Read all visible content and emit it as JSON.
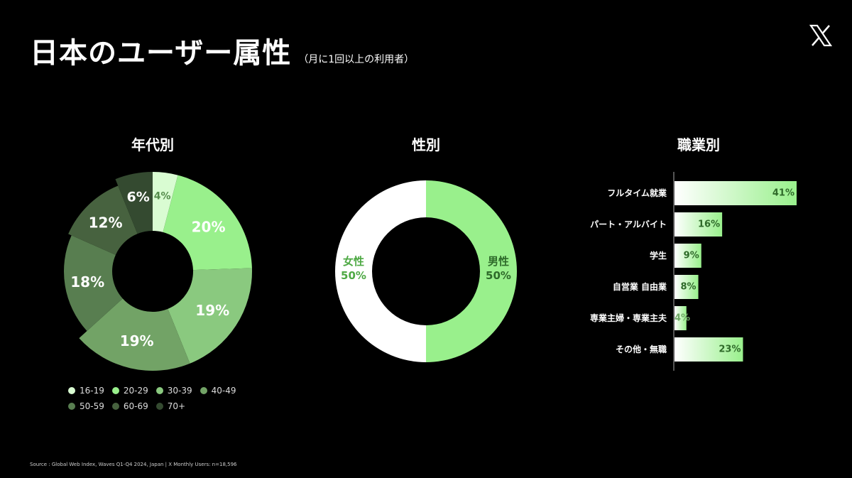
{
  "header": {
    "title": "日本のユーザー属性",
    "subtitle": "（月に1回以上の利用者）",
    "logo_icon": "x-logo-icon"
  },
  "footer": {
    "source": "Source : Global Web Index, Waves Q1-Q4 2024, Japan | X Monthly Users: n=18,596"
  },
  "chart_data": [
    {
      "type": "pie",
      "title": "年代別",
      "categories": [
        "16-19",
        "20-29",
        "30-39",
        "40-49",
        "50-59",
        "60-69",
        "70+"
      ],
      "values": [
        4,
        20,
        19,
        19,
        18,
        12,
        6
      ],
      "labels": [
        "4%",
        "20%",
        "19%",
        "19%",
        "18%",
        "12%",
        "6%"
      ],
      "colors": [
        "#d9fcd2",
        "#99f08c",
        "#8ac97f",
        "#72a366",
        "#587e50",
        "#47623f",
        "#344a30"
      ],
      "legend": "bottom"
    },
    {
      "type": "pie",
      "title": "性別",
      "categories": [
        "男性",
        "女性"
      ],
      "values": [
        50,
        50
      ],
      "labels": [
        "50%",
        "50%"
      ],
      "colors": [
        "#99f08c",
        "#ffffff"
      ]
    },
    {
      "type": "bar",
      "orientation": "horizontal",
      "title": "職業別",
      "categories": [
        "フルタイム就業",
        "パート・アルバイト",
        "学生",
        "自営業 自由業",
        "専業主婦・専業主夫",
        "その他・無職"
      ],
      "values": [
        41,
        16,
        9,
        8,
        4,
        23
      ],
      "labels": [
        "41%",
        "16%",
        "9%",
        "8%",
        "4%",
        "23%"
      ],
      "colors": [
        "#ffffff",
        "#99f08c"
      ]
    }
  ]
}
